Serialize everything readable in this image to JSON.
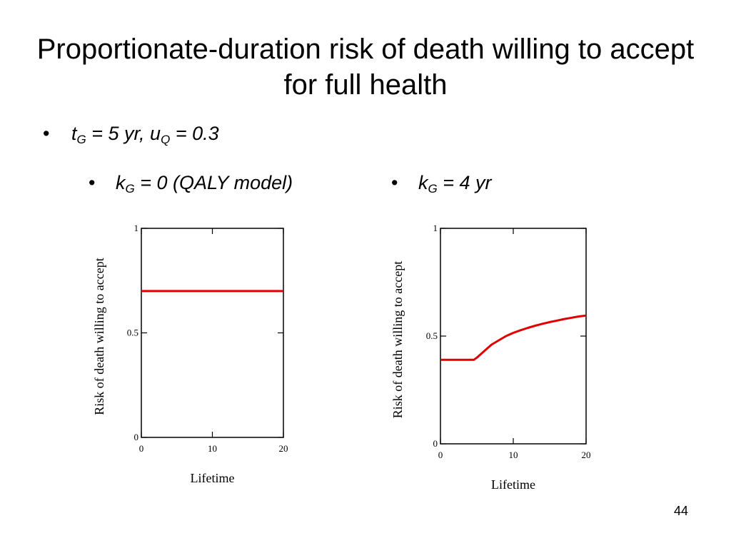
{
  "slide": {
    "title": "Proportionate-duration risk of death willing to accept for full health",
    "page_number": "44"
  },
  "bullets": {
    "main": {
      "t": "t",
      "t_sub": "G",
      "eq1": " = 5 yr, ",
      "u": "u",
      "u_sub": "Q",
      "eq2": " = 0.3"
    },
    "left": {
      "k": "k",
      "k_sub": "G",
      "rest": " = 0 (QALY model)"
    },
    "right": {
      "k": "k",
      "k_sub": "G",
      "rest": " = 4 yr"
    }
  },
  "colors": {
    "series": "#e00000",
    "axis": "#000000"
  },
  "chart_data": [
    {
      "type": "line",
      "xlabel": "Lifetime",
      "ylabel": "Risk of death willing to accept",
      "xlim": [
        0,
        20
      ],
      "ylim": [
        0,
        1
      ],
      "xticks": [
        "0",
        "10",
        "20"
      ],
      "yticks": [
        "0",
        "0.5",
        "1"
      ],
      "x": [
        0,
        2.5,
        5,
        7.5,
        10,
        12.5,
        15,
        17.5,
        20
      ],
      "series": [
        {
          "values": [
            0.7,
            0.7,
            0.7,
            0.7,
            0.7,
            0.7,
            0.7,
            0.7,
            0.7
          ]
        }
      ]
    },
    {
      "type": "line",
      "xlabel": "Lifetime",
      "ylabel": "Risk of death willing to accept",
      "xlim": [
        0,
        20
      ],
      "ylim": [
        0,
        1
      ],
      "xticks": [
        "0",
        "10",
        "20"
      ],
      "yticks": [
        "0",
        "0.5",
        "1"
      ],
      "x": [
        0,
        2,
        4.6,
        5,
        6,
        7,
        8,
        9,
        10,
        11,
        12,
        13,
        14,
        15,
        16,
        17,
        18,
        19,
        20
      ],
      "series": [
        {
          "values": [
            0.39,
            0.39,
            0.39,
            0.4,
            0.43,
            0.46,
            0.48,
            0.5,
            0.515,
            0.527,
            0.538,
            0.548,
            0.557,
            0.565,
            0.572,
            0.579,
            0.585,
            0.591,
            0.595
          ]
        }
      ]
    }
  ]
}
